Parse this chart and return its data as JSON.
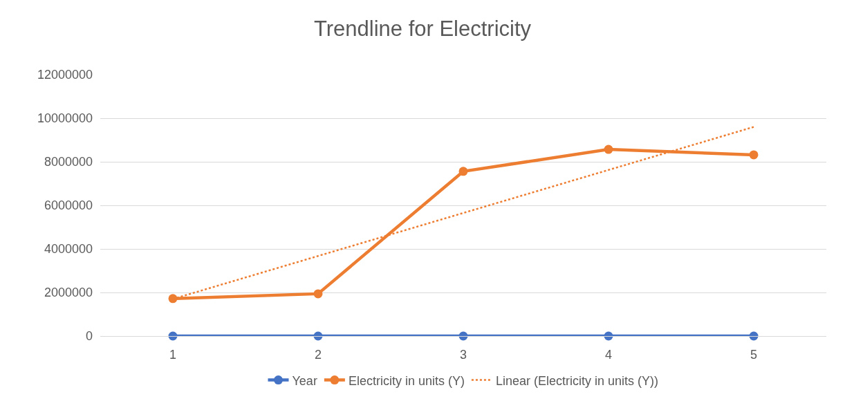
{
  "chart_data": {
    "type": "line",
    "title": "Trendline for Electricity",
    "x": [
      1,
      2,
      3,
      4,
      5
    ],
    "xlim": [
      0.5,
      5.5
    ],
    "xticks": [
      1,
      2,
      3,
      4,
      5
    ],
    "ylim": [
      0,
      12000000
    ],
    "yticks": [
      0,
      2000000,
      4000000,
      6000000,
      8000000,
      10000000,
      12000000
    ],
    "grid": "y",
    "legend": "bottom",
    "marker": "circle",
    "line_style": "solid",
    "series": [
      {
        "name": "Year",
        "color": "#4472c4",
        "values": [
          0,
          0,
          0,
          0,
          0
        ]
      },
      {
        "name": "Electricity in units (Y)",
        "color": "#ed7d31",
        "values": [
          1720000,
          1940000,
          7560000,
          8570000,
          8320000
        ]
      },
      {
        "name": "Linear (Electricity in units (Y))",
        "color": "#ed7d31",
        "x": [
          1,
          5
        ],
        "values": [
          1700000,
          9600000
        ],
        "marker": "none",
        "line_style": "dotted"
      }
    ]
  }
}
